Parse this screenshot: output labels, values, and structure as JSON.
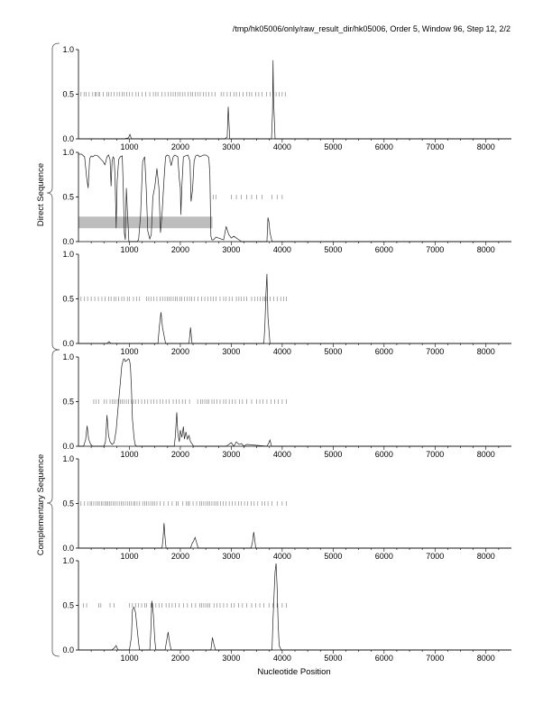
{
  "page": {
    "header": "/tmp/hk05006/only/raw_result_dir/hk05006, Order 5, Window 96, Step 12, 2/2",
    "group_direct": "Direct Sequence",
    "group_complementary": "Complementary Sequence",
    "xlabel": "Nucleotide Position"
  },
  "chart_data": [
    {
      "type": "line",
      "panel": 1,
      "group": "Direct Sequence",
      "xlim": [
        0,
        8500
      ],
      "ylim": [
        0,
        1
      ],
      "xticks": [
        1000,
        2000,
        3000,
        4000,
        5000,
        6000,
        7000,
        8000
      ],
      "yticks": [
        "0.0",
        "0.5",
        "1.0"
      ],
      "x": [
        0,
        900,
        980,
        1010,
        1040,
        2870,
        2920,
        2940,
        2970,
        3790,
        3810,
        3820,
        3830,
        3860,
        8500
      ],
      "y": [
        0,
        0,
        0.01,
        0.05,
        0,
        0,
        0.02,
        0.36,
        0,
        0,
        0.3,
        0.88,
        0.45,
        0,
        0
      ],
      "marks_y": 0.5,
      "marks_x": [
        50,
        110,
        150,
        210,
        280,
        330,
        350,
        390,
        420,
        490,
        560,
        590,
        640,
        700,
        760,
        810,
        860,
        900,
        950,
        1000,
        1060,
        1130,
        1180,
        1250,
        1320,
        1400,
        1470,
        1520,
        1560,
        1640,
        1700,
        1760,
        1810,
        1860,
        1900,
        1950,
        1990,
        2040,
        2090,
        2150,
        2200,
        2240,
        2290,
        2340,
        2390,
        2450,
        2500,
        2560,
        2620,
        2680,
        2800,
        2850,
        2920,
        2980,
        3050,
        3100,
        3160,
        3230,
        3300,
        3360,
        3400,
        3480,
        3540,
        3600,
        3690,
        3760,
        3830,
        3880,
        3940,
        4000,
        4060
      ]
    },
    {
      "type": "line",
      "panel": 2,
      "group": "Direct Sequence",
      "xlim": [
        0,
        8500
      ],
      "ylim": [
        0,
        1
      ],
      "xticks": [
        1000,
        2000,
        3000,
        4000,
        5000,
        6000,
        7000,
        8000
      ],
      "yticks": [
        "0.0",
        "0.5",
        "1.0"
      ],
      "highlight": {
        "x0": 0,
        "x1": 2630,
        "y0": 0.15,
        "y1": 0.28
      },
      "x": [
        0,
        60,
        120,
        160,
        190,
        220,
        250,
        280,
        330,
        380,
        430,
        480,
        520,
        560,
        590,
        620,
        640,
        660,
        680,
        700,
        720,
        740,
        760,
        790,
        820,
        860,
        880,
        900,
        920,
        940,
        960,
        990,
        1020,
        1060,
        1100,
        1150,
        1180,
        1220,
        1260,
        1300,
        1330,
        1360,
        1400,
        1430,
        1460,
        1500,
        1540,
        1580,
        1610,
        1640,
        1680,
        1710,
        1740,
        1780,
        1820,
        1860,
        1890,
        1920,
        1950,
        1980,
        2000,
        2010,
        2030,
        2060,
        2100,
        2150,
        2190,
        2210,
        2240,
        2270,
        2300,
        2340,
        2380,
        2420,
        2460,
        2500,
        2530,
        2560,
        2580,
        2600,
        2620,
        2650,
        2700,
        2800,
        2850,
        2900,
        2950,
        3000,
        3050,
        3100,
        3150,
        3200,
        3700,
        3720,
        3740,
        3760,
        3800,
        8500
      ],
      "y": [
        0.98,
        0.98,
        0.95,
        0.72,
        0.6,
        0.93,
        0.96,
        0.95,
        0.97,
        0.96,
        0.93,
        0.9,
        0.86,
        0.95,
        0.97,
        0.92,
        0.62,
        0.9,
        0.95,
        0.93,
        0.7,
        0.15,
        0.68,
        0.92,
        0.95,
        0.96,
        0.6,
        0.1,
        0.02,
        0.6,
        0.35,
        0,
        0,
        0,
        0,
        0,
        0.02,
        0.3,
        0.9,
        0.95,
        0.6,
        0.12,
        0.03,
        0.08,
        0.5,
        0.62,
        0.82,
        0.6,
        0.1,
        0.3,
        0.7,
        0.95,
        0.97,
        0.96,
        0.85,
        0.95,
        0.97,
        0.96,
        0.95,
        0.7,
        0.6,
        0.3,
        0.62,
        0.95,
        0.96,
        0.97,
        0.9,
        0.45,
        0.58,
        0.9,
        0.96,
        0.97,
        0.95,
        0.96,
        0.97,
        0.97,
        0.96,
        0.94,
        0.75,
        0.06,
        0.02,
        0.02,
        0.05,
        0.03,
        0.02,
        0.17,
        0.08,
        0.04,
        0.06,
        0.04,
        0.02,
        0,
        0,
        0.27,
        0.22,
        0.1,
        0,
        0
      ],
      "marks_y": 0.5,
      "marks_x": [
        2650,
        2700,
        3000,
        3100,
        3200,
        3300,
        3400,
        3500,
        3600,
        3800,
        3900,
        4000
      ]
    },
    {
      "type": "line",
      "panel": 3,
      "group": "Direct Sequence",
      "xlim": [
        0,
        8500
      ],
      "ylim": [
        0,
        1
      ],
      "xticks": [
        1000,
        2000,
        3000,
        4000,
        5000,
        6000,
        7000,
        8000
      ],
      "yticks": [
        "0.0",
        "0.5",
        "1.0"
      ],
      "x": [
        0,
        560,
        600,
        640,
        1560,
        1590,
        1620,
        1650,
        1690,
        1710,
        2170,
        2200,
        2230,
        3640,
        3660,
        3680,
        3700,
        3720,
        3760,
        8500
      ],
      "y": [
        0,
        0,
        0.02,
        0,
        0,
        0.2,
        0.35,
        0.18,
        0.06,
        0,
        0,
        0.18,
        0,
        0,
        0.2,
        0.55,
        0.78,
        0.3,
        0,
        0
      ],
      "marks_y": 0.5,
      "marks_x": [
        50,
        120,
        180,
        250,
        320,
        390,
        460,
        520,
        590,
        640,
        700,
        740,
        790,
        850,
        900,
        960,
        1000,
        1080,
        1140,
        1200,
        1340,
        1380,
        1430,
        1480,
        1540,
        1600,
        1650,
        1700,
        1740,
        1780,
        1820,
        1860,
        1900,
        1940,
        1990,
        2030,
        2080,
        2130,
        2180,
        2220,
        2280,
        2350,
        2420,
        2480,
        2540,
        2600,
        2650,
        2700,
        2780,
        2850,
        2900,
        2960,
        3020,
        3100,
        3150,
        3200,
        3250,
        3300,
        3400,
        3460,
        3520,
        3570,
        3620,
        3660,
        3700,
        3760,
        3830,
        3900,
        3970,
        4030,
        4080
      ]
    },
    {
      "type": "line",
      "panel": 4,
      "group": "Complementary Sequence",
      "xlim": [
        0,
        8500
      ],
      "ylim": [
        0,
        1
      ],
      "xticks": [
        1000,
        2000,
        3000,
        4000,
        5000,
        6000,
        7000,
        8000
      ],
      "yticks": [
        "0.0",
        "0.5",
        "1.0"
      ],
      "x": [
        0,
        100,
        140,
        170,
        200,
        240,
        280,
        500,
        530,
        560,
        590,
        620,
        660,
        700,
        740,
        780,
        820,
        850,
        880,
        900,
        920,
        950,
        980,
        1000,
        1020,
        1040,
        1060,
        1090,
        1110,
        1140,
        1880,
        1900,
        1930,
        1950,
        1980,
        2000,
        2030,
        2060,
        2080,
        2110,
        2140,
        2170,
        2200,
        2240,
        2260,
        2900,
        2950,
        3000,
        3050,
        3100,
        3150,
        3200,
        3250,
        3300,
        3700,
        3740,
        3760,
        3790,
        8500
      ],
      "y": [
        0,
        0,
        0.07,
        0.23,
        0.08,
        0.02,
        0,
        0,
        0.05,
        0.35,
        0.12,
        0.05,
        0.02,
        0.04,
        0.18,
        0.45,
        0.7,
        0.9,
        0.97,
        0.98,
        0.95,
        0.96,
        0.98,
        0.97,
        0.9,
        0.65,
        0.3,
        0.1,
        0.02,
        0,
        0,
        0.1,
        0.38,
        0.15,
        0.05,
        0.18,
        0.1,
        0.22,
        0.08,
        0.16,
        0.08,
        0.12,
        0.05,
        0.02,
        0,
        0,
        0.02,
        0.04,
        0,
        0.05,
        0.02,
        0.03,
        0,
        0.02,
        0,
        0.04,
        0.07,
        0,
        0
      ],
      "marks_y": 0.5,
      "marks_x": [
        300,
        350,
        400,
        500,
        550,
        620,
        660,
        700,
        740,
        780,
        820,
        860,
        900,
        940,
        980,
        1040,
        1080,
        1120,
        1180,
        1240,
        1300,
        1360,
        1420,
        1480,
        1540,
        1600,
        1660,
        1720,
        1780,
        1860,
        1920,
        1980,
        2040,
        2100,
        2180,
        2340,
        2400,
        2440,
        2480,
        2520,
        2560,
        2620,
        2660,
        2720,
        2780,
        2850,
        2900,
        2960,
        3020,
        3080,
        3160,
        3220,
        3300,
        3400,
        3500,
        3560,
        3620,
        3700,
        3780,
        3850,
        3920,
        4000,
        4080
      ]
    },
    {
      "type": "line",
      "panel": 5,
      "group": "Complementary Sequence",
      "xlim": [
        0,
        8500
      ],
      "ylim": [
        0,
        1
      ],
      "xticks": [
        1000,
        2000,
        3000,
        4000,
        5000,
        6000,
        7000,
        8000
      ],
      "yticks": [
        "0.0",
        "0.5",
        "1.0"
      ],
      "x": [
        0,
        1640,
        1660,
        1680,
        1700,
        1720,
        2200,
        2230,
        2260,
        2290,
        2320,
        2350,
        3390,
        3420,
        3440,
        3460,
        3480,
        8500
      ],
      "y": [
        0,
        0,
        0.1,
        0.28,
        0.12,
        0,
        0,
        0.05,
        0.08,
        0.12,
        0.06,
        0,
        0,
        0.08,
        0.18,
        0.1,
        0,
        0
      ],
      "marks_y": 0.5,
      "marks_x": [
        50,
        120,
        180,
        230,
        260,
        300,
        340,
        380,
        410,
        450,
        480,
        520,
        550,
        580,
        610,
        640,
        680,
        720,
        760,
        800,
        840,
        880,
        920,
        960,
        1000,
        1040,
        1080,
        1110,
        1150,
        1200,
        1260,
        1300,
        1340,
        1380,
        1420,
        1460,
        1500,
        1540,
        1600,
        1680,
        1760,
        1840,
        1920,
        1960,
        2050,
        2120,
        2150,
        2180,
        2250,
        2320,
        2380,
        2420,
        2460,
        2500,
        2540,
        2580,
        2620,
        2660,
        2700,
        2740,
        2790,
        2840,
        2900,
        2960,
        3020,
        3080,
        3140,
        3200,
        3260,
        3320,
        3390,
        3450,
        3520,
        3600,
        3660,
        3720,
        3800,
        3900,
        4000,
        4080
      ]
    },
    {
      "type": "line",
      "panel": 6,
      "group": "Complementary Sequence",
      "xlim": [
        0,
        8500
      ],
      "ylim": [
        0,
        1
      ],
      "xticks": [
        1000,
        2000,
        3000,
        4000,
        5000,
        6000,
        7000,
        8000
      ],
      "yticks": [
        "0.0",
        "0.5",
        "1.0"
      ],
      "x": [
        0,
        650,
        700,
        740,
        760,
        780,
        1000,
        1040,
        1060,
        1090,
        1120,
        1150,
        1180,
        1200,
        1400,
        1420,
        1440,
        1470,
        1500,
        1520,
        1700,
        1730,
        1760,
        1790,
        1820,
        2600,
        2630,
        2660,
        2690,
        3800,
        3820,
        3840,
        3860,
        3880,
        3900,
        3920,
        3940,
        3980,
        8500
      ],
      "y": [
        0,
        0,
        0.02,
        0.05,
        0.02,
        0,
        0,
        0.15,
        0.45,
        0.48,
        0.42,
        0.25,
        0.08,
        0,
        0,
        0.2,
        0.55,
        0.4,
        0.1,
        0,
        0,
        0.1,
        0.2,
        0.08,
        0,
        0,
        0.14,
        0.06,
        0,
        0,
        0.35,
        0.62,
        0.88,
        0.97,
        0.7,
        0.3,
        0.05,
        0,
        0
      ],
      "marks_y": 0.5,
      "marks_x": [
        100,
        160,
        400,
        440,
        620,
        700,
        1000,
        1060,
        1120,
        1180,
        1240,
        1300,
        1340,
        1420,
        1460,
        1520,
        1580,
        1640,
        1720,
        1780,
        1840,
        1900,
        1980,
        2060,
        2140,
        2220,
        2300,
        2380,
        2420,
        2460,
        2500,
        2540,
        2580,
        2660,
        2720,
        2780,
        2850,
        2920,
        3000,
        3060,
        3140,
        3220,
        3300,
        3400,
        3480,
        3560,
        3640,
        3740,
        3820,
        3900,
        4000,
        4080
      ]
    }
  ]
}
